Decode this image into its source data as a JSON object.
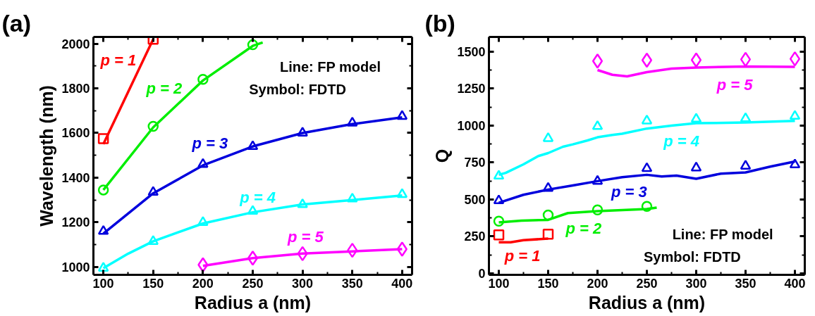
{
  "chart_data": [
    {
      "type": "line",
      "title": "(a)",
      "xlabel": "Radius a (nm)",
      "ylabel": "Wavelength (nm)",
      "xlim": [
        90,
        410
      ],
      "ylim": [
        965,
        2030
      ],
      "xticks": [
        100,
        150,
        200,
        250,
        300,
        350,
        400
      ],
      "yticks": [
        1000,
        1200,
        1400,
        1600,
        1800,
        2000
      ],
      "grid": false,
      "annotations": [
        "Line: FP model",
        "Symbol: FDTD"
      ],
      "series": [
        {
          "name": "p = 1",
          "type": "line",
          "color": "#ff0000",
          "x": [
            100,
            150
          ],
          "values": [
            1550,
            2020
          ]
        },
        {
          "type": "scatter",
          "marker": "square",
          "color": "#ff0000",
          "x": [
            100,
            150
          ],
          "values": [
            1575,
            2020
          ]
        },
        {
          "name": "p = 2",
          "type": "line",
          "color": "#00ee00",
          "x": [
            100,
            150,
            200,
            250,
            260
          ],
          "values": [
            1345,
            1625,
            1835,
            1990,
            2005
          ]
        },
        {
          "type": "scatter",
          "marker": "circle",
          "color": "#00ee00",
          "x": [
            100,
            150,
            200,
            250
          ],
          "values": [
            1345,
            1630,
            1840,
            1995
          ]
        },
        {
          "name": "p = 3",
          "type": "line",
          "color": "#0000dd",
          "x": [
            100,
            150,
            200,
            250,
            300,
            350,
            400
          ],
          "values": [
            1150,
            1330,
            1455,
            1540,
            1600,
            1640,
            1670
          ]
        },
        {
          "type": "scatter",
          "marker": "triangle",
          "color": "#0000dd",
          "x": [
            100,
            150,
            200,
            250,
            300,
            350,
            400
          ],
          "values": [
            1160,
            1335,
            1460,
            1540,
            1600,
            1645,
            1675
          ]
        },
        {
          "name": "p = 4",
          "type": "line",
          "color": "#00ffff",
          "x": [
            100,
            125,
            150,
            200,
            250,
            300,
            350,
            400
          ],
          "values": [
            995,
            1060,
            1115,
            1195,
            1245,
            1280,
            1300,
            1320
          ]
        },
        {
          "type": "scatter",
          "marker": "triangle",
          "color": "#00ffff",
          "x": [
            100,
            150,
            200,
            250,
            300,
            350,
            400
          ],
          "values": [
            995,
            1115,
            1200,
            1250,
            1280,
            1305,
            1325
          ]
        },
        {
          "name": "p = 5",
          "type": "line",
          "color": "#ff00ff",
          "x": [
            200,
            250,
            300,
            350,
            400
          ],
          "values": [
            1005,
            1040,
            1060,
            1070,
            1080
          ]
        },
        {
          "type": "scatter",
          "marker": "diamond",
          "color": "#ff00ff",
          "x": [
            200,
            250,
            300,
            350,
            400
          ],
          "values": [
            1010,
            1040,
            1060,
            1075,
            1080
          ]
        }
      ]
    },
    {
      "type": "line",
      "title": "(b)",
      "xlabel": "Radius a (nm)",
      "ylabel": "Q",
      "xlim": [
        90,
        410
      ],
      "ylim": [
        -10,
        1600
      ],
      "xticks": [
        100,
        150,
        200,
        250,
        300,
        350,
        400
      ],
      "yticks": [
        0,
        250,
        500,
        750,
        1000,
        1250,
        1500
      ],
      "grid": false,
      "annotations": [
        "Line: FP model",
        "Symbol: FDTD"
      ],
      "series": [
        {
          "name": "p = 1",
          "type": "line",
          "color": "#ff0000",
          "x": [
            100,
            112,
            125,
            150
          ],
          "values": [
            210,
            210,
            225,
            235
          ]
        },
        {
          "type": "scatter",
          "marker": "square",
          "color": "#ff0000",
          "x": [
            100,
            150
          ],
          "values": [
            260,
            265
          ]
        },
        {
          "name": "p = 2",
          "type": "line",
          "color": "#00ee00",
          "x": [
            100,
            123,
            150,
            170,
            200,
            250,
            260
          ],
          "values": [
            345,
            357,
            362,
            408,
            421,
            435,
            445
          ]
        },
        {
          "type": "scatter",
          "marker": "circle",
          "color": "#00ee00",
          "x": [
            100,
            150,
            200,
            250
          ],
          "values": [
            353,
            395,
            429,
            453
          ]
        },
        {
          "name": "p = 3",
          "type": "line",
          "color": "#0000dd",
          "x": [
            100,
            125,
            150,
            175,
            200,
            225,
            250,
            265,
            280,
            300,
            325,
            350,
            375,
            400
          ],
          "values": [
            478,
            532,
            567,
            595,
            624,
            651,
            667,
            656,
            662,
            640,
            675,
            683,
            722,
            757
          ]
        },
        {
          "type": "scatter",
          "marker": "triangle",
          "color": "#0000dd",
          "x": [
            100,
            150,
            200,
            250,
            300,
            350,
            400
          ],
          "values": [
            492,
            576,
            624,
            710,
            714,
            726,
            735
          ]
        },
        {
          "name": "p = 4",
          "type": "line",
          "color": "#00ffff",
          "x": [
            100,
            107,
            125,
            140,
            150,
            165,
            175,
            190,
            200,
            215,
            225,
            250,
            275,
            300,
            350,
            400
          ],
          "values": [
            667,
            680,
            738,
            794,
            814,
            857,
            873,
            900,
            921,
            937,
            945,
            980,
            1000,
            1016,
            1021,
            1032
          ]
        },
        {
          "type": "scatter",
          "marker": "triangle",
          "color": "#00ffff",
          "x": [
            100,
            150,
            200,
            250,
            300,
            350,
            400
          ],
          "values": [
            659,
            913,
            995,
            1032,
            1045,
            1048,
            1064
          ]
        },
        {
          "name": "p = 5",
          "type": "line",
          "color": "#ff00ff",
          "x": [
            200,
            215,
            230,
            250,
            275,
            300,
            350,
            400
          ],
          "values": [
            1376,
            1344,
            1333,
            1362,
            1386,
            1393,
            1400,
            1397
          ]
        },
        {
          "type": "scatter",
          "marker": "diamond",
          "color": "#ff00ff",
          "x": [
            200,
            250,
            300,
            350,
            400
          ],
          "values": [
            1437,
            1443,
            1444,
            1448,
            1452
          ]
        }
      ]
    }
  ]
}
